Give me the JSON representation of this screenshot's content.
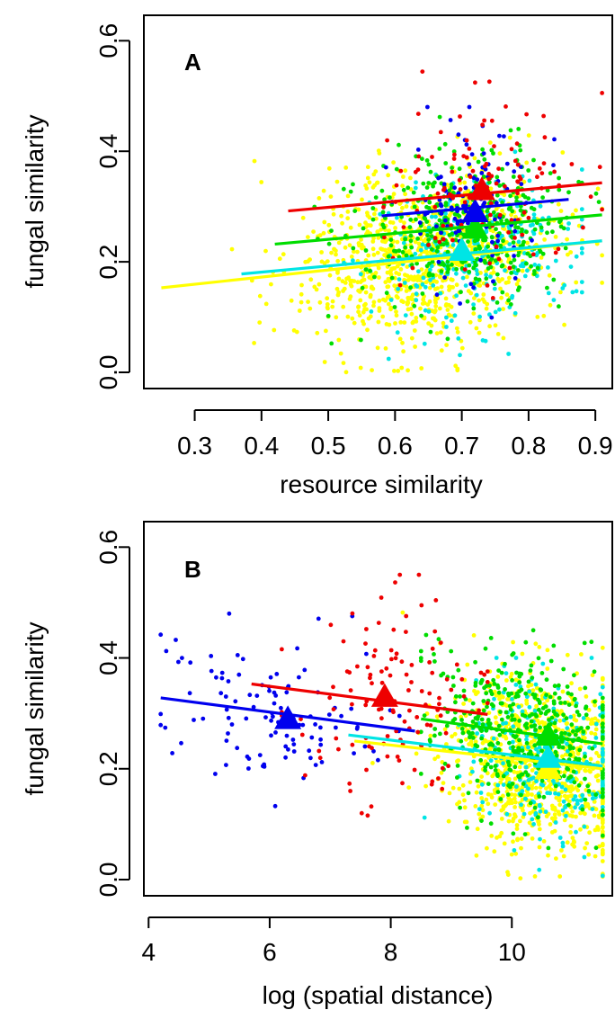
{
  "chart_data": [
    {
      "panel": "A",
      "type": "scatter",
      "xlabel": "resource similarity",
      "ylabel": "fungal similarity",
      "xlim": [
        0.24,
        0.92
      ],
      "ylim": [
        0.0,
        0.62
      ],
      "x_ticks": [
        0.3,
        0.4,
        0.5,
        0.6,
        0.7,
        0.8,
        0.9
      ],
      "x_tick_labels": [
        "0.3",
        "0.4",
        "0.5",
        "0.6",
        "0.7",
        "0.8",
        "0.9"
      ],
      "y_ticks": [
        0.0,
        0.2,
        0.4,
        0.6
      ],
      "y_tick_labels": [
        "0.0",
        "0.2",
        "0.4",
        "0.6"
      ],
      "grid": false,
      "legend": "none",
      "series": [
        {
          "color": "#ffff00",
          "trend": [
            [
              0.25,
              0.153
            ],
            [
              0.91,
              0.238
            ]
          ],
          "mean": [
            0.7,
            0.22
          ],
          "cloud": {
            "x_range": [
              0.25,
              0.91
            ],
            "x_center": 0.64,
            "x_sd": 0.09,
            "y_range": [
              0.0,
              0.5
            ],
            "y_sd": 0.08,
            "n": 900
          }
        },
        {
          "color": "#00e5e5",
          "trend": [
            [
              0.37,
              0.178
            ],
            [
              0.91,
              0.238
            ]
          ],
          "mean": [
            0.7,
            0.22
          ],
          "cloud": {
            "x_range": [
              0.37,
              0.88
            ],
            "x_center": 0.72,
            "x_sd": 0.08,
            "y_range": [
              0.0,
              0.4
            ],
            "y_sd": 0.07,
            "n": 260
          }
        },
        {
          "color": "#00dd00",
          "trend": [
            [
              0.42,
              0.232
            ],
            [
              0.91,
              0.285
            ]
          ],
          "mean": [
            0.72,
            0.26
          ],
          "cloud": {
            "x_range": [
              0.42,
              0.91
            ],
            "x_center": 0.71,
            "x_sd": 0.08,
            "y_range": [
              0.05,
              0.48
            ],
            "y_sd": 0.07,
            "n": 420
          }
        },
        {
          "color": "#0000ee",
          "trend": [
            [
              0.58,
              0.283
            ],
            [
              0.86,
              0.313
            ]
          ],
          "mean": [
            0.72,
            0.29
          ],
          "cloud": {
            "x_range": [
              0.58,
              0.85
            ],
            "x_center": 0.72,
            "x_sd": 0.05,
            "y_range": [
              0.08,
              0.48
            ],
            "y_sd": 0.07,
            "n": 110
          }
        },
        {
          "color": "#ee0000",
          "trend": [
            [
              0.44,
              0.292
            ],
            [
              0.91,
              0.343
            ]
          ],
          "mean": [
            0.73,
            0.33
          ],
          "cloud": {
            "x_range": [
              0.44,
              0.91
            ],
            "x_center": 0.72,
            "x_sd": 0.07,
            "y_range": [
              0.12,
              0.55
            ],
            "y_sd": 0.08,
            "n": 120
          }
        }
      ]
    },
    {
      "panel": "B",
      "type": "scatter",
      "xlabel": "log (spatial distance)",
      "ylabel": "fungal similarity",
      "xlim": [
        4.1,
        11.6
      ],
      "ylim": [
        0.0,
        0.62
      ],
      "x_ticks": [
        4,
        6,
        8,
        10
      ],
      "x_tick_labels": [
        "4",
        "6",
        "8",
        "10"
      ],
      "y_ticks": [
        0.0,
        0.2,
        0.4,
        0.6
      ],
      "y_tick_labels": [
        "0.0",
        "0.2",
        "0.4",
        "0.6"
      ],
      "grid": false,
      "legend": "none",
      "series": [
        {
          "color": "#ffff00",
          "trend": [
            [
              7.4,
              0.25
            ],
            [
              11.5,
              0.2
            ]
          ],
          "mean": [
            10.6,
            0.2
          ],
          "cloud": {
            "x_range": [
              7.6,
              11.5
            ],
            "x_center": 10.5,
            "x_sd": 0.8,
            "y_range": [
              0.0,
              0.5
            ],
            "y_sd": 0.08,
            "n": 900
          }
        },
        {
          "color": "#00e5e5",
          "trend": [
            [
              7.3,
              0.261
            ],
            [
              11.5,
              0.205
            ]
          ],
          "mean": [
            10.6,
            0.22
          ],
          "cloud": {
            "x_range": [
              7.3,
              11.5
            ],
            "x_center": 10.6,
            "x_sd": 0.7,
            "y_range": [
              0.0,
              0.4
            ],
            "y_sd": 0.07,
            "n": 260
          }
        },
        {
          "color": "#00dd00",
          "trend": [
            [
              8.5,
              0.29
            ],
            [
              11.5,
              0.245
            ]
          ],
          "mean": [
            10.6,
            0.26
          ],
          "cloud": {
            "x_range": [
              8.5,
              11.5
            ],
            "x_center": 10.3,
            "x_sd": 0.8,
            "y_range": [
              0.05,
              0.48
            ],
            "y_sd": 0.07,
            "n": 420
          }
        },
        {
          "color": "#0000ee",
          "trend": [
            [
              4.2,
              0.328
            ],
            [
              8.4,
              0.268
            ]
          ],
          "mean": [
            6.3,
            0.29
          ],
          "cloud": {
            "x_range": [
              4.2,
              8.4
            ],
            "x_center": 6.2,
            "x_sd": 1.0,
            "y_range": [
              0.08,
              0.48
            ],
            "y_sd": 0.07,
            "n": 110
          }
        },
        {
          "color": "#ee0000",
          "trend": [
            [
              5.7,
              0.353
            ],
            [
              9.6,
              0.298
            ]
          ],
          "mean": [
            7.9,
            0.33
          ],
          "cloud": {
            "x_range": [
              6.2,
              9.6
            ],
            "x_center": 8.0,
            "x_sd": 0.8,
            "y_range": [
              0.05,
              0.55
            ],
            "y_sd": 0.09,
            "n": 120
          }
        }
      ]
    }
  ]
}
